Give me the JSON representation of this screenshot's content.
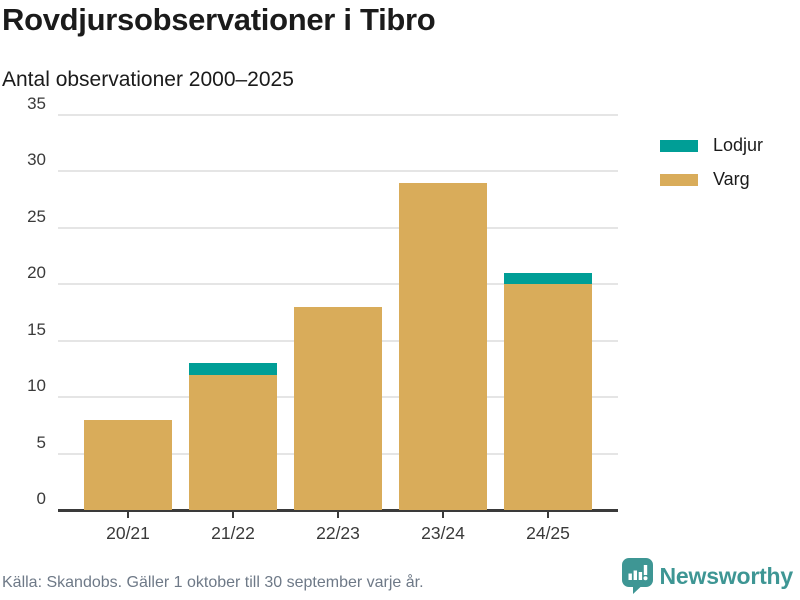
{
  "header": {
    "title": "Rovdjursobservationer i Tibro",
    "subtitle": "Antal observationer 2000–2025"
  },
  "chart_data": {
    "type": "bar",
    "stacked": true,
    "categories": [
      "20/21",
      "21/22",
      "22/23",
      "23/24",
      "24/25"
    ],
    "series": [
      {
        "name": "Varg",
        "color": "#D9AC5A",
        "values": [
          8,
          12,
          18,
          29,
          20
        ]
      },
      {
        "name": "Lodjur",
        "color": "#009E96",
        "values": [
          0,
          1,
          0,
          0,
          1
        ]
      }
    ],
    "totals": [
      8,
      13,
      18,
      29,
      21
    ],
    "title": "Rovdjursobservationer i Tibro",
    "subtitle": "Antal observationer 2000–2025",
    "xlabel": "",
    "ylabel": "",
    "ylim": [
      0,
      35
    ],
    "ytick_step": 5,
    "grid": true,
    "legend_position": "right",
    "legend_order": [
      "Lodjur",
      "Varg"
    ]
  },
  "footer": {
    "source": "Källa: Skandobs. Gäller 1 oktober till 30 september varje år.",
    "brand": "Newsworthy"
  },
  "colors": {
    "lodjur": "#009E96",
    "varg": "#D9AC5A",
    "brand_teal": "#3e9694",
    "gridline": "#e5e5e5",
    "axis": "#3a3a3a",
    "text_dark": "#1b1b1b",
    "text_muted": "#6e7987"
  }
}
